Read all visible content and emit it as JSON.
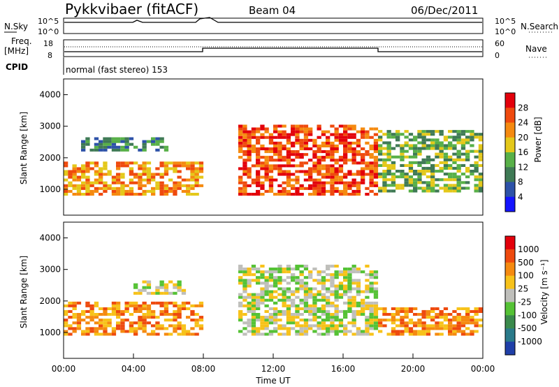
{
  "header": {
    "station": "Pykkvibaer (fitACF)",
    "beam": "Beam 04",
    "date": "06/Dec/2011"
  },
  "strip": {
    "nsky_label": "N.Sky",
    "nsky_ticks": [
      "10^5",
      "10^0"
    ],
    "nsearch_label": "N.Search",
    "nsearch_ticks": [
      "10^5",
      "10^0"
    ],
    "freq_label": "Freq.",
    "freq_unit": "[MHz]",
    "freq_ticks": [
      "18",
      "8"
    ],
    "nave_label": "Nave",
    "nave_ticks": [
      "60",
      "0"
    ],
    "cpid_label": "CPID",
    "cpid_text": "normal (fast stereo) 153"
  },
  "chart_data": [
    {
      "type": "heatmap",
      "name": "power",
      "ylabel": "Slant Range [km]",
      "yticks": [
        "4000",
        "3000",
        "2000",
        "1000"
      ],
      "ylim": [
        180,
        4500
      ],
      "colorbar_label": "Power [dB]",
      "colorbar_ticks": [
        "28",
        "24",
        "20",
        "16",
        "12",
        "8",
        "4"
      ],
      "colors": [
        "#1414ff",
        "#2d52a8",
        "#3f7a55",
        "#58b048",
        "#e4c81a",
        "#f58a10",
        "#ef4a0e",
        "#e3000b"
      ],
      "regions": [
        {
          "t0": 0.0,
          "t1": 8.0,
          "r0": 800,
          "r1": 1800,
          "level": 5
        },
        {
          "t0": 1.0,
          "t1": 6.0,
          "r0": 2200,
          "r1": 2600,
          "level": 2
        },
        {
          "t0": 10.0,
          "t1": 18.0,
          "r0": 800,
          "r1": 3000,
          "level": 6
        },
        {
          "t0": 18.0,
          "t1": 24.0,
          "r0": 900,
          "r1": 2800,
          "level": 3
        }
      ]
    },
    {
      "type": "heatmap",
      "name": "velocity",
      "ylabel": "Slant Range [km]",
      "yticks": [
        "4000",
        "3000",
        "2000",
        "1000"
      ],
      "ylim": [
        180,
        4500
      ],
      "colorbar_label": "Velocity [m s⁻¹]",
      "colorbar_ticks": [
        "1000",
        "500",
        "100",
        "25",
        "-25",
        "-100",
        "-500",
        "-1000"
      ],
      "colors": [
        "#1f3fa8",
        "#2a7a8a",
        "#3a8a4c",
        "#55c235",
        "#bfbfbb",
        "#f7c21a",
        "#f58a10",
        "#ee4a0e",
        "#e3000b"
      ],
      "regions": [
        {
          "t0": 0.0,
          "t1": 8.0,
          "r0": 900,
          "r1": 1900,
          "level": 6
        },
        {
          "t0": 4.0,
          "t1": 7.0,
          "r0": 2200,
          "r1": 2600,
          "level": 4
        },
        {
          "t0": 10.0,
          "t1": 18.0,
          "r0": 900,
          "r1": 3100,
          "level": 4
        },
        {
          "t0": 18.0,
          "t1": 24.0,
          "r0": 900,
          "r1": 1800,
          "level": 6
        }
      ]
    }
  ],
  "xaxis": {
    "label": "Time UT",
    "ticks": [
      "00:00",
      "04:00",
      "08:00",
      "12:00",
      "16:00",
      "20:00",
      "00:00"
    ],
    "range": [
      0,
      24
    ]
  }
}
